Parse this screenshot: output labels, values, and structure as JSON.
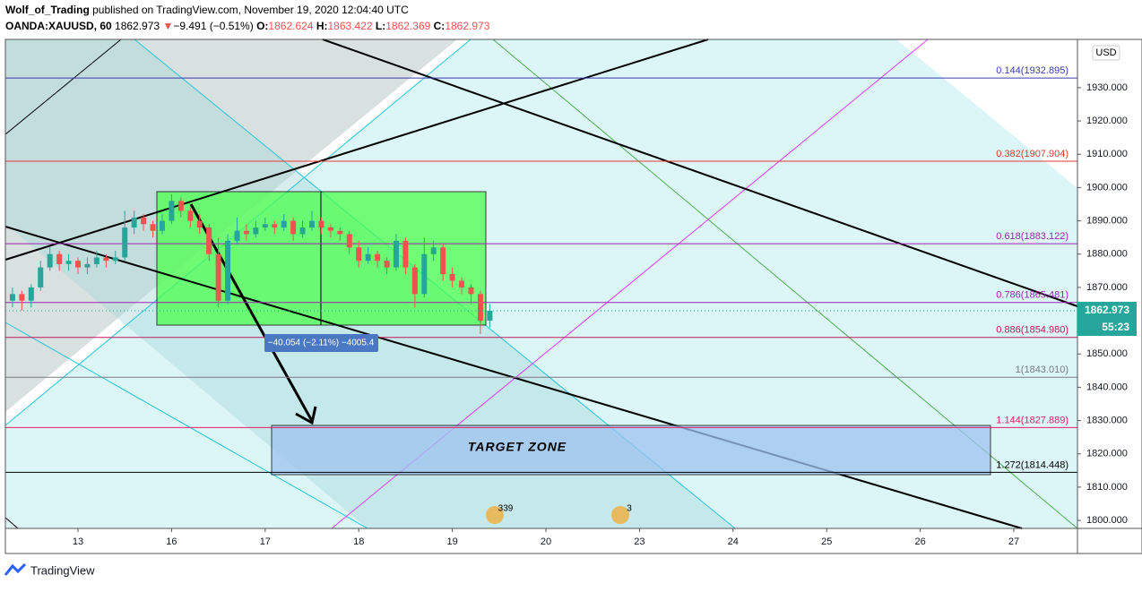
{
  "header": {
    "author": "Wolf_of_Trading",
    "published": "published on TradingView.com, November 19, 2020 12:04:40 UTC",
    "symbol": "OANDA:XAUUSD, 60",
    "price": "1862.973",
    "arrow": "▼",
    "change": "−9.491 (−0.51%)",
    "o_label": "O:",
    "o": "1862.624",
    "h_label": "H:",
    "h": "1863.422",
    "l_label": "L:",
    "l": "1862.369",
    "c_label": "C:",
    "c": "1862.973"
  },
  "chart_data": {
    "type": "candlestick",
    "currency": "USD",
    "up_color": "#26a69a",
    "down_color": "#ef5350",
    "xlim": [
      -0.776,
      10.68
    ],
    "ylim": [
      1797.6,
      1944.5
    ],
    "xticks": [
      {
        "value": 0,
        "label": "13"
      },
      {
        "value": 1,
        "label": "16"
      },
      {
        "value": 2,
        "label": "17"
      },
      {
        "value": 3,
        "label": "18"
      },
      {
        "value": 4,
        "label": "19"
      },
      {
        "value": 5,
        "label": "20"
      },
      {
        "value": 6,
        "label": "23"
      },
      {
        "value": 7,
        "label": "24"
      },
      {
        "value": 8,
        "label": "25"
      },
      {
        "value": 9,
        "label": "26"
      },
      {
        "value": 10,
        "label": "27"
      }
    ],
    "yticks": [
      {
        "value": 1800,
        "label": "1800.000"
      },
      {
        "value": 1810,
        "label": "1810.000"
      },
      {
        "value": 1820,
        "label": "1820.000"
      },
      {
        "value": 1830,
        "label": "1830.000"
      },
      {
        "value": 1840,
        "label": "1840.000"
      },
      {
        "value": 1850,
        "label": "1850.000"
      },
      {
        "value": 1860,
        "label": "1860.000"
      },
      {
        "value": 1870,
        "label": "1870.000"
      },
      {
        "value": 1880,
        "label": "1880.000"
      },
      {
        "value": 1890,
        "label": "1890.000"
      },
      {
        "value": 1900,
        "label": "1900.000"
      },
      {
        "value": 1910,
        "label": "1910.000"
      },
      {
        "value": 1920,
        "label": "1920.000"
      },
      {
        "value": 1930,
        "label": "1930.000"
      }
    ],
    "fib_levels": [
      {
        "value": 1932.895,
        "label": "0.144(1932.895)",
        "color": "#3c3cb0"
      },
      {
        "value": 1907.904,
        "label": "0.382(1907.904)",
        "color": "#e53935"
      },
      {
        "value": 1883.122,
        "label": "0.618(1883.122)",
        "color": "#9c27b0"
      },
      {
        "value": 1865.481,
        "label": "0.786(1865.481)",
        "color": "#9c27b0"
      },
      {
        "value": 1854.98,
        "label": "0.886(1854.980)",
        "color": "#c2185b"
      },
      {
        "value": 1843.01,
        "label": "1(1843.010)",
        "color": "#787b86"
      },
      {
        "value": 1827.889,
        "label": "1.144(1827.889)",
        "color": "#e91e63"
      },
      {
        "value": 1814.448,
        "label": "1.272(1814.448)",
        "color": "#000000"
      }
    ],
    "last_price": 1862.973,
    "countdown": "55:23",
    "measure_label": "−40.054 (−2.11%) −4005.4",
    "target_label": "TARGET ZONE",
    "events": [
      "339",
      "3"
    ],
    "candles": [
      {
        "x": -0.7,
        "ohlc": [
          1866,
          1870,
          1864,
          1868
        ]
      },
      {
        "x": -0.6,
        "ohlc": [
          1868,
          1869,
          1863,
          1866
        ]
      },
      {
        "x": -0.5,
        "ohlc": [
          1866,
          1871,
          1864,
          1870
        ]
      },
      {
        "x": -0.4,
        "ohlc": [
          1870,
          1878,
          1869,
          1876
        ]
      },
      {
        "x": -0.3,
        "ohlc": [
          1876,
          1882,
          1875,
          1880
        ]
      },
      {
        "x": -0.2,
        "ohlc": [
          1880,
          1881,
          1875,
          1877
        ]
      },
      {
        "x": -0.1,
        "ohlc": [
          1877,
          1880,
          1875,
          1878
        ]
      },
      {
        "x": 0,
        "ohlc": [
          1878,
          1879,
          1874,
          1876
        ]
      },
      {
        "x": 0.1,
        "ohlc": [
          1876,
          1879,
          1874,
          1877
        ]
      },
      {
        "x": 0.2,
        "ohlc": [
          1877,
          1881,
          1876,
          1879
        ]
      },
      {
        "x": 0.3,
        "ohlc": [
          1879,
          1880,
          1876,
          1878
        ]
      },
      {
        "x": 0.4,
        "ohlc": [
          1878,
          1881,
          1877,
          1879
        ]
      },
      {
        "x": 0.5,
        "ohlc": [
          1879,
          1893,
          1878,
          1888
        ]
      },
      {
        "x": 0.6,
        "ohlc": [
          1888,
          1893,
          1886,
          1891
        ]
      },
      {
        "x": 0.7,
        "ohlc": [
          1891,
          1892,
          1887,
          1889
        ]
      },
      {
        "x": 0.8,
        "ohlc": [
          1889,
          1890,
          1885,
          1887
        ]
      },
      {
        "x": 0.9,
        "ohlc": [
          1887,
          1892,
          1886,
          1890
        ]
      },
      {
        "x": 1,
        "ohlc": [
          1890,
          1898,
          1889,
          1896
        ]
      },
      {
        "x": 1.1,
        "ohlc": [
          1896,
          1897,
          1891,
          1893
        ]
      },
      {
        "x": 1.2,
        "ohlc": [
          1893,
          1894,
          1888,
          1890
        ]
      },
      {
        "x": 1.3,
        "ohlc": [
          1890,
          1892,
          1886,
          1888
        ]
      },
      {
        "x": 1.4,
        "ohlc": [
          1888,
          1889,
          1878,
          1880
        ]
      },
      {
        "x": 1.5,
        "ohlc": [
          1880,
          1885,
          1864,
          1866
        ]
      },
      {
        "x": 1.6,
        "ohlc": [
          1866,
          1886,
          1865,
          1884
        ]
      },
      {
        "x": 1.7,
        "ohlc": [
          1884,
          1891,
          1883,
          1887
        ]
      },
      {
        "x": 1.8,
        "ohlc": [
          1887,
          1889,
          1884,
          1886
        ]
      },
      {
        "x": 1.9,
        "ohlc": [
          1886,
          1890,
          1885,
          1888
        ]
      },
      {
        "x": 2,
        "ohlc": [
          1888,
          1891,
          1887,
          1889
        ]
      },
      {
        "x": 2.1,
        "ohlc": [
          1889,
          1890,
          1886,
          1888
        ]
      },
      {
        "x": 2.2,
        "ohlc": [
          1888,
          1892,
          1887,
          1890
        ]
      },
      {
        "x": 2.3,
        "ohlc": [
          1890,
          1891,
          1884,
          1886
        ]
      },
      {
        "x": 2.4,
        "ohlc": [
          1886,
          1890,
          1885,
          1888
        ]
      },
      {
        "x": 2.5,
        "ohlc": [
          1888,
          1893,
          1887,
          1890
        ]
      },
      {
        "x": 2.6,
        "ohlc": [
          1890,
          1891,
          1886,
          1888
        ]
      },
      {
        "x": 2.7,
        "ohlc": [
          1888,
          1889,
          1885,
          1887
        ]
      },
      {
        "x": 2.8,
        "ohlc": [
          1887,
          1888,
          1884,
          1886
        ]
      },
      {
        "x": 2.9,
        "ohlc": [
          1886,
          1887,
          1880,
          1882
        ]
      },
      {
        "x": 3,
        "ohlc": [
          1882,
          1884,
          1876,
          1878
        ]
      },
      {
        "x": 3.1,
        "ohlc": [
          1878,
          1882,
          1877,
          1880
        ]
      },
      {
        "x": 3.2,
        "ohlc": [
          1880,
          1881,
          1876,
          1878
        ]
      },
      {
        "x": 3.3,
        "ohlc": [
          1878,
          1879,
          1874,
          1876
        ]
      },
      {
        "x": 3.4,
        "ohlc": [
          1876,
          1886,
          1875,
          1884
        ]
      },
      {
        "x": 3.5,
        "ohlc": [
          1884,
          1885,
          1874,
          1876
        ]
      },
      {
        "x": 3.6,
        "ohlc": [
          1876,
          1877,
          1864,
          1868
        ]
      },
      {
        "x": 3.7,
        "ohlc": [
          1868,
          1885,
          1867,
          1880
        ]
      },
      {
        "x": 3.8,
        "ohlc": [
          1880,
          1884,
          1878,
          1882
        ]
      },
      {
        "x": 3.9,
        "ohlc": [
          1882,
          1883,
          1872,
          1874
        ]
      },
      {
        "x": 4,
        "ohlc": [
          1874,
          1876,
          1870,
          1872
        ]
      },
      {
        "x": 4.1,
        "ohlc": [
          1872,
          1873,
          1868,
          1870
        ]
      },
      {
        "x": 4.2,
        "ohlc": [
          1870,
          1871,
          1865,
          1868
        ]
      },
      {
        "x": 4.3,
        "ohlc": [
          1868,
          1869,
          1856,
          1860
        ]
      },
      {
        "x": 4.4,
        "ohlc": [
          1860,
          1865,
          1858,
          1863
        ]
      }
    ]
  },
  "footer": {
    "brand": "TradingView"
  }
}
